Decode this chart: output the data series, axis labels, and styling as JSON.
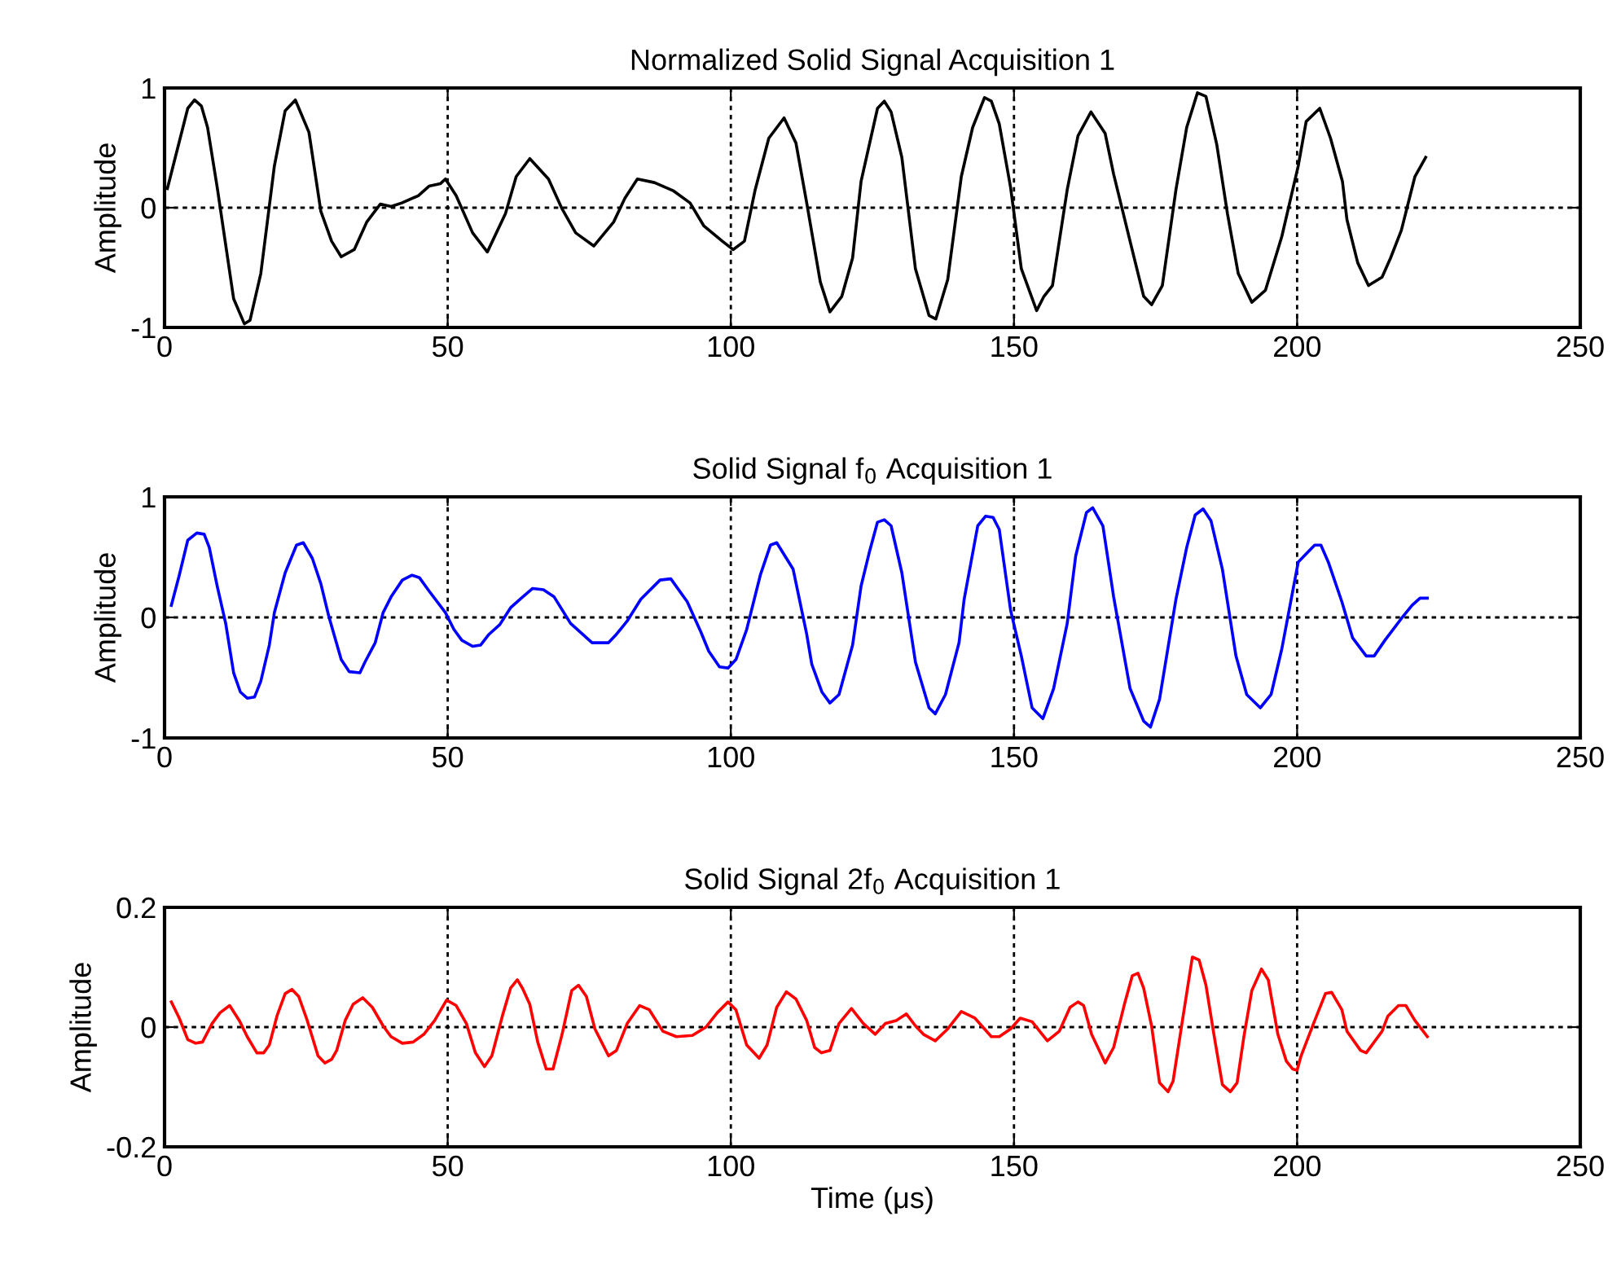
{
  "chart_data": [
    {
      "type": "line",
      "title": "Normalized Solid Signal Acquisition 1",
      "ylabel": "Amplitude",
      "xlim": [
        0,
        250
      ],
      "ylim": [
        -1,
        1
      ],
      "xticks": [
        0,
        50,
        100,
        150,
        200,
        250
      ],
      "yticks": [
        -1,
        0,
        1
      ],
      "grid": true,
      "line_style": "solid",
      "x": [
        0.5,
        4.1,
        5.3,
        6.5,
        7.6,
        9.3,
        12.2,
        14.1,
        15.1,
        17.0,
        19.4,
        21.3,
        23.1,
        25.5,
        27.6,
        29.5,
        31.2,
        33.5,
        35.7,
        38.1,
        40.0,
        41.9,
        44.8,
        46.7,
        48.7,
        49.6,
        51.5,
        54.4,
        57.0,
        60.2,
        62.1,
        64.5,
        67.8,
        70.2,
        72.6,
        75.8,
        79.3,
        81.3,
        83.5,
        86.5,
        89.9,
        92.8,
        95.2,
        98.5,
        100.4,
        102.4,
        104.3,
        106.7,
        109.4,
        111.5,
        113.4,
        115.8,
        117.5,
        119.6,
        121.5,
        123.0,
        125.9,
        127.1,
        128.3,
        130.2,
        132.6,
        135.0,
        136.2,
        138.3,
        140.7,
        142.7,
        144.8,
        146.0,
        147.4,
        149.4,
        151.3,
        154.0,
        155.3,
        156.8,
        159.4,
        161.3,
        163.6,
        166.1,
        167.6,
        170.5,
        172.9,
        174.3,
        176.2,
        178.6,
        180.5,
        182.4,
        183.9,
        185.8,
        187.7,
        189.6,
        192.0,
        194.4,
        197.3,
        200.2,
        201.6,
        204.0,
        205.9,
        208.0,
        208.8,
        210.7,
        212.6,
        215.0,
        216.5,
        218.4,
        220.8,
        222.7
      ],
      "series": [
        {
          "color": "#000000",
          "values": [
            0.16,
            0.83,
            0.9,
            0.85,
            0.67,
            0.17,
            -0.76,
            -0.97,
            -0.94,
            -0.55,
            0.35,
            0.81,
            0.9,
            0.63,
            -0.03,
            -0.28,
            -0.41,
            -0.35,
            -0.12,
            0.03,
            0.01,
            0.04,
            0.1,
            0.18,
            0.2,
            0.24,
            0.1,
            -0.21,
            -0.37,
            -0.05,
            0.26,
            0.41,
            0.24,
            -0.01,
            -0.21,
            -0.32,
            -0.12,
            0.08,
            0.24,
            0.21,
            0.14,
            0.04,
            -0.15,
            -0.28,
            -0.35,
            -0.28,
            0.15,
            0.58,
            0.75,
            0.54,
            0.04,
            -0.62,
            -0.87,
            -0.74,
            -0.42,
            0.22,
            0.83,
            0.89,
            0.8,
            0.42,
            -0.51,
            -0.9,
            -0.93,
            -0.6,
            0.26,
            0.67,
            0.92,
            0.89,
            0.7,
            0.17,
            -0.51,
            -0.86,
            -0.74,
            -0.65,
            0.15,
            0.6,
            0.8,
            0.62,
            0.28,
            -0.28,
            -0.74,
            -0.81,
            -0.65,
            0.15,
            0.67,
            0.96,
            0.93,
            0.53,
            -0.05,
            -0.55,
            -0.79,
            -0.69,
            -0.24,
            0.35,
            0.72,
            0.83,
            0.58,
            0.22,
            -0.1,
            -0.46,
            -0.65,
            -0.58,
            -0.42,
            -0.19,
            0.26,
            0.42
          ]
        }
      ]
    },
    {
      "type": "line",
      "title": "Solid Signal f$_{0}$ Acquisition 1",
      "ylabel": "Amplitude",
      "xlim": [
        0,
        250
      ],
      "ylim": [
        -1,
        1
      ],
      "xticks": [
        0,
        50,
        100,
        150,
        200,
        250
      ],
      "yticks": [
        -1,
        0,
        1
      ],
      "grid": true,
      "line_style": "solid",
      "x": [
        1.2,
        2.6,
        4.1,
        5.7,
        7.0,
        7.9,
        9.3,
        10.8,
        12.2,
        13.4,
        14.6,
        15.9,
        17.0,
        18.5,
        19.4,
        21.3,
        23.3,
        24.5,
        26.1,
        27.6,
        29.0,
        31.2,
        32.6,
        34.5,
        35.4,
        37.2,
        38.6,
        40.0,
        42.0,
        43.7,
        45.0,
        46.7,
        49.6,
        51.1,
        52.5,
        54.4,
        55.8,
        57.3,
        59.2,
        61.1,
        63.0,
        65.0,
        66.9,
        68.8,
        71.7,
        75.5,
        78.4,
        79.8,
        81.7,
        84.1,
        87.5,
        89.4,
        92.3,
        94.7,
        96.1,
        98.0,
        99.5,
        100.9,
        102.8,
        105.2,
        107.0,
        108.1,
        111.0,
        113.4,
        114.3,
        116.1,
        117.5,
        119.1,
        121.5,
        123.0,
        124.4,
        125.9,
        127.1,
        128.3,
        130.2,
        132.6,
        135.0,
        136.1,
        137.9,
        140.3,
        141.2,
        143.6,
        145.0,
        146.3,
        147.4,
        149.4,
        151.3,
        153.2,
        155.1,
        157.0,
        159.4,
        160.9,
        162.8,
        163.9,
        165.7,
        167.6,
        170.5,
        172.9,
        174.1,
        175.7,
        178.6,
        180.5,
        182.0,
        183.4,
        184.8,
        186.8,
        189.2,
        191.1,
        193.5,
        195.4,
        197.3,
        200.2,
        203.1,
        204.2,
        205.5,
        207.9,
        209.8,
        212.2,
        213.6,
        215.5,
        218.4,
        220.3,
        221.7,
        223.0
      ],
      "series": [
        {
          "color": "#0000ff",
          "values": [
            0.1,
            0.35,
            0.64,
            0.7,
            0.69,
            0.58,
            0.26,
            -0.05,
            -0.46,
            -0.62,
            -0.67,
            -0.66,
            -0.53,
            -0.23,
            0.04,
            0.37,
            0.6,
            0.62,
            0.49,
            0.28,
            0.01,
            -0.35,
            -0.45,
            -0.46,
            -0.37,
            -0.21,
            0.04,
            0.17,
            0.31,
            0.35,
            0.33,
            0.22,
            0.04,
            -0.1,
            -0.19,
            -0.24,
            -0.23,
            -0.14,
            -0.06,
            0.08,
            0.16,
            0.24,
            0.23,
            0.17,
            -0.05,
            -0.21,
            -0.21,
            -0.14,
            -0.03,
            0.15,
            0.31,
            0.32,
            0.13,
            -0.12,
            -0.28,
            -0.41,
            -0.42,
            -0.35,
            -0.1,
            0.35,
            0.6,
            0.62,
            0.4,
            -0.14,
            -0.39,
            -0.62,
            -0.71,
            -0.64,
            -0.23,
            0.26,
            0.53,
            0.79,
            0.81,
            0.76,
            0.37,
            -0.37,
            -0.75,
            -0.8,
            -0.64,
            -0.21,
            0.15,
            0.76,
            0.84,
            0.83,
            0.73,
            0.06,
            -0.32,
            -0.75,
            -0.84,
            -0.59,
            -0.05,
            0.51,
            0.87,
            0.91,
            0.76,
            0.17,
            -0.59,
            -0.86,
            -0.91,
            -0.68,
            0.15,
            0.58,
            0.85,
            0.9,
            0.8,
            0.4,
            -0.32,
            -0.64,
            -0.75,
            -0.64,
            -0.26,
            0.46,
            0.6,
            0.6,
            0.46,
            0.13,
            -0.17,
            -0.32,
            -0.32,
            -0.19,
            -0.01,
            0.1,
            0.16,
            0.16
          ]
        }
      ]
    },
    {
      "type": "line",
      "title": "Solid Signal 2f$_{0}$ Acquisition 1",
      "ylabel": "Amplitude",
      "xlabel": "Time (μs)",
      "xlim": [
        0,
        250
      ],
      "ylim": [
        -0.2,
        0.2
      ],
      "xticks": [
        0,
        50,
        100,
        150,
        200,
        250
      ],
      "yticks": [
        -0.2,
        0,
        0.2
      ],
      "grid": true,
      "line_style": "solid",
      "x": [
        1.2,
        2.6,
        4.1,
        5.5,
        6.7,
        8.4,
        9.8,
        11.5,
        13.2,
        14.6,
        16.3,
        17.5,
        18.5,
        19.9,
        21.3,
        22.5,
        23.7,
        25.2,
        27.1,
        28.3,
        29.5,
        30.4,
        31.9,
        33.3,
        35.0,
        36.7,
        38.6,
        40.0,
        42.0,
        43.9,
        45.8,
        47.7,
        49.8,
        51.5,
        53.3,
        54.9,
        56.5,
        57.8,
        59.7,
        61.1,
        62.3,
        63.2,
        64.5,
        65.9,
        67.4,
        68.6,
        70.2,
        71.9,
        73.1,
        74.5,
        76.0,
        78.4,
        79.8,
        81.7,
        83.9,
        85.6,
        88.0,
        90.4,
        93.2,
        95.6,
        97.6,
        99.5,
        100.9,
        102.8,
        105.0,
        106.4,
        108.1,
        109.8,
        111.5,
        113.4,
        114.8,
        116.0,
        117.5,
        119.1,
        121.3,
        123.4,
        125.5,
        127.3,
        129.2,
        131.0,
        132.6,
        134.0,
        136.1,
        138.3,
        140.7,
        143.1,
        146.0,
        147.4,
        149.4,
        151.1,
        153.2,
        155.9,
        158.0,
        159.9,
        161.3,
        162.3,
        163.7,
        166.1,
        167.6,
        169.5,
        170.9,
        171.9,
        172.9,
        174.3,
        175.7,
        177.2,
        178.1,
        179.6,
        181.5,
        182.7,
        183.9,
        185.3,
        186.8,
        188.2,
        189.4,
        190.6,
        192.0,
        193.7,
        194.9,
        196.6,
        198.1,
        199.2,
        200.0,
        200.7,
        202.9,
        205.0,
        206.1,
        207.9,
        208.8,
        211.2,
        212.2,
        215.0,
        216.0,
        217.9,
        219.2,
        220.8,
        223.0
      ],
      "series": [
        {
          "color": "#ff0000",
          "values": [
            0.042,
            0.015,
            -0.021,
            -0.027,
            -0.025,
            0.006,
            0.024,
            0.036,
            0.011,
            -0.016,
            -0.043,
            -0.043,
            -0.03,
            0.02,
            0.056,
            0.063,
            0.051,
            0.011,
            -0.048,
            -0.06,
            -0.054,
            -0.039,
            0.011,
            0.038,
            0.049,
            0.033,
            0.002,
            -0.016,
            -0.027,
            -0.025,
            -0.012,
            0.011,
            0.045,
            0.036,
            0.006,
            -0.043,
            -0.066,
            -0.048,
            0.02,
            0.065,
            0.079,
            0.065,
            0.038,
            -0.025,
            -0.07,
            -0.07,
            -0.012,
            0.061,
            0.07,
            0.051,
            -0.003,
            -0.048,
            -0.039,
            0.006,
            0.036,
            0.029,
            -0.007,
            -0.016,
            -0.014,
            0.0,
            0.024,
            0.042,
            0.029,
            -0.03,
            -0.052,
            -0.03,
            0.033,
            0.059,
            0.047,
            0.011,
            -0.034,
            -0.043,
            -0.039,
            0.006,
            0.031,
            0.006,
            -0.012,
            0.006,
            0.011,
            0.022,
            0.002,
            -0.012,
            -0.023,
            -0.003,
            0.026,
            0.015,
            -0.016,
            -0.016,
            -0.003,
            0.015,
            0.009,
            -0.023,
            -0.007,
            0.033,
            0.042,
            0.036,
            -0.012,
            -0.06,
            -0.034,
            0.038,
            0.086,
            0.09,
            0.065,
            0.002,
            -0.093,
            -0.108,
            -0.09,
            0.002,
            0.117,
            0.112,
            0.07,
            -0.012,
            -0.096,
            -0.108,
            -0.093,
            -0.016,
            0.061,
            0.097,
            0.079,
            -0.012,
            -0.057,
            -0.07,
            -0.072,
            -0.048,
            0.006,
            0.056,
            0.058,
            0.029,
            -0.007,
            -0.039,
            -0.043,
            -0.007,
            0.018,
            0.036,
            0.036,
            0.011,
            -0.016
          ]
        }
      ]
    }
  ]
}
